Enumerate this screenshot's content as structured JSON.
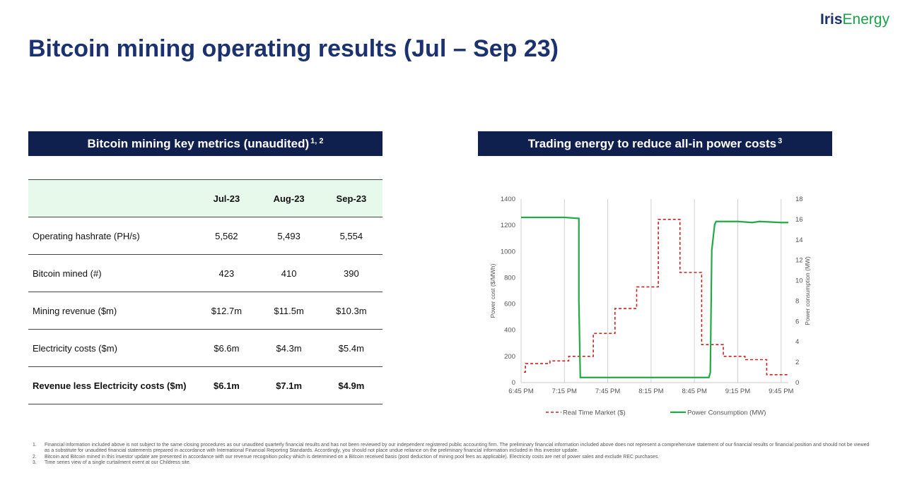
{
  "header": {
    "title": "Bitcoin mining operating results (Jul – Sep 23)",
    "logo_part1": "Iris",
    "logo_part2": "Energy"
  },
  "left_panel": {
    "banner_text": "Bitcoin mining key metrics (unaudited)",
    "banner_sup": "1, 2",
    "table": {
      "columns": [
        "",
        "Jul-23",
        "Aug-23",
        "Sep-23"
      ],
      "rows": [
        {
          "label": "Operating  hashrate (PH/s)",
          "values": [
            "5,562",
            "5,493",
            "5,554"
          ]
        },
        {
          "label": "Bitcoin mined  (#)",
          "values": [
            "423",
            "410",
            "390"
          ]
        },
        {
          "label": "Mining  revenue  ($m)",
          "values": [
            "$12.7m",
            "$11.5m",
            "$10.3m"
          ]
        },
        {
          "label": "Electricity costs ($m)",
          "values": [
            "$6.6m",
            "$4.3m",
            "$5.4m"
          ]
        },
        {
          "label": "Revenue less Electricity  costs ($m)",
          "values": [
            "$6.1m",
            "$7.1m",
            "$4.9m"
          ]
        }
      ]
    }
  },
  "right_panel": {
    "banner_text": "Trading energy to reduce all-in power costs",
    "banner_sup": "3"
  },
  "chart_data": {
    "type": "line",
    "x_ticks": [
      "6:45 PM",
      "7:15 PM",
      "7:45 PM",
      "8:15 PM",
      "8:45 PM",
      "9:15 PM",
      "9:45 PM"
    ],
    "xlim": [
      "6:45 PM",
      "9:50 PM"
    ],
    "ylabel_left": "Power cost ($/MWh)",
    "ylabel_right": "Power consumption  (MW)",
    "ylim_left": [
      0,
      1400
    ],
    "yticks_left": [
      0,
      200,
      400,
      600,
      800,
      1000,
      1200,
      1400
    ],
    "ylim_right": [
      0,
      18
    ],
    "yticks_right": [
      0,
      2,
      4,
      6,
      8,
      10,
      12,
      14,
      16,
      18
    ],
    "grid": "vertical",
    "legend_position": "bottom",
    "series": [
      {
        "name": "Real Time Market ($)",
        "axis": "left",
        "color": "#cc2222",
        "style": "dashed-step",
        "x": [
          "6:47 PM",
          "6:48 PM",
          "7:05 PM",
          "7:18 PM",
          "7:35 PM",
          "7:50 PM",
          "8:05 PM",
          "8:20 PM",
          "8:35 PM",
          "8:50 PM",
          "9:05 PM",
          "9:20 PM",
          "9:35 PM",
          "9:50 PM"
        ],
        "y": [
          80,
          145,
          165,
          200,
          375,
          565,
          730,
          1245,
          840,
          290,
          200,
          175,
          60,
          60
        ]
      },
      {
        "name": "Power Consumption (MW)",
        "axis": "right",
        "color": "#22aa44",
        "style": "solid",
        "x": [
          "6:45 PM",
          "7:05 PM",
          "7:15 PM",
          "7:25 PM",
          "7:25 PM",
          "7:26 PM",
          "8:05 PM",
          "8:45 PM",
          "8:55 PM",
          "8:56 PM",
          "8:57 PM",
          "8:59 PM",
          "9:00 PM",
          "9:15 PM",
          "9:25 PM",
          "9:30 PM",
          "9:45 PM",
          "9:50 PM"
        ],
        "y": [
          16.2,
          16.2,
          16.2,
          16.1,
          8.0,
          0.5,
          0.5,
          0.5,
          0.5,
          1.0,
          13.0,
          15.5,
          15.8,
          15.8,
          15.7,
          15.8,
          15.7,
          15.7
        ]
      }
    ]
  },
  "footnotes": [
    {
      "num": "1.",
      "text": "Financial information included above  is not subject to the same closing procedures  as our unaudited  quarterly financial results and has not been reviewed  by our independent  registered public accounting firm. The preliminary financial information included above  does not represent  a comprehensive  statement of our financial results or financial position and should not be viewed  as a substitute for unaudited financial statements prepared  in accordance with International  Financial Reporting Standards. Accordingly, you should not place undue reliance on the preliminary financial information included in this investor update."
    },
    {
      "num": "2.",
      "text": "Bitcoin and Bitcoin mined in this investor update are presented in accordance with our revenue  recognition policy which is determined on a Bitcoin received  basis (post deduction of mining pool fees as applicable). Electricity costs are net of power sales and exclude REC purchases."
    },
    {
      "num": "3.",
      "text": "Time series view  of a single curtailment event at our Childress site."
    }
  ]
}
